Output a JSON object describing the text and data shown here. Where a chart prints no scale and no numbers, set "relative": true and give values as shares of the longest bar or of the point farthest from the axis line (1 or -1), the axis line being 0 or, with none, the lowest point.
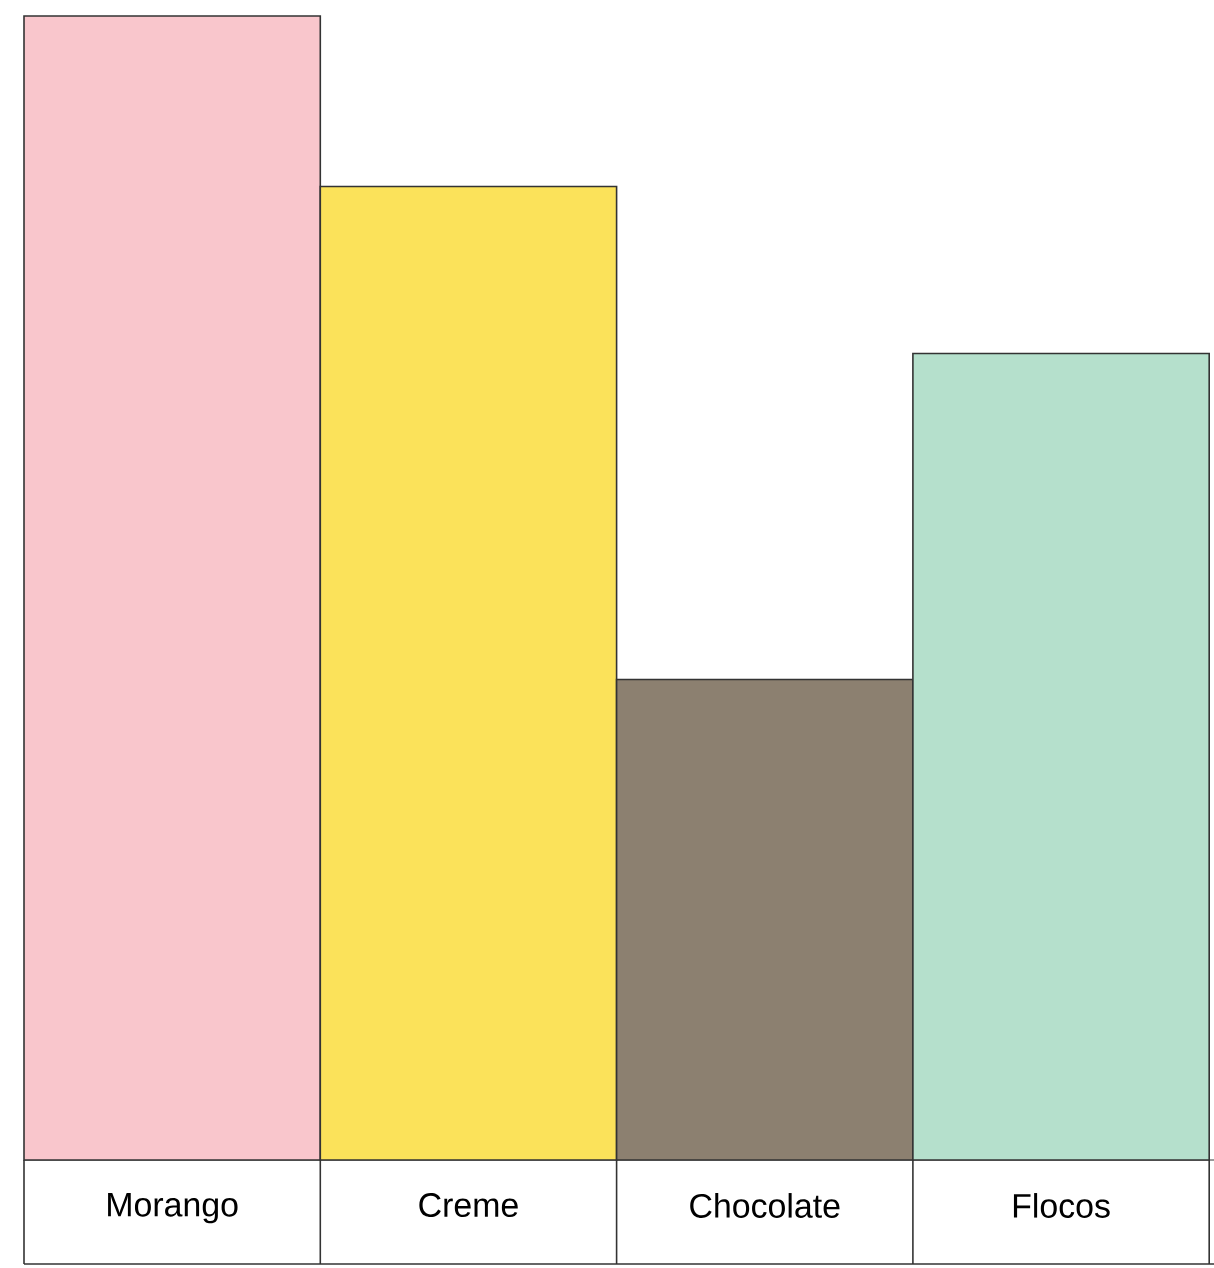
{
  "chart_data": {
    "type": "bar",
    "relative": true,
    "categories": [
      "Morango",
      "Creme",
      "Chocolate",
      "Flocos"
    ],
    "values": [
      1,
      0.851,
      0.42,
      0.705
    ],
    "colors": [
      "#f9c6cc",
      "#fbe25a",
      "#8c8070",
      "#b5e0cc"
    ]
  }
}
